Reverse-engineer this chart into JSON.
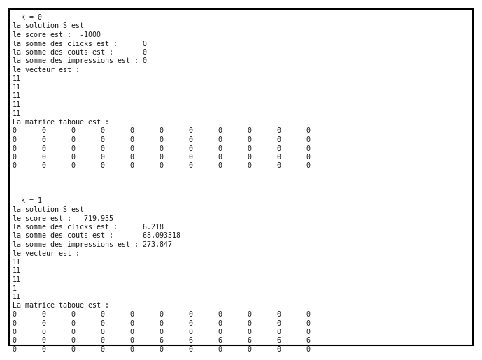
{
  "bg_color": "#ffffff",
  "border_color": "#000000",
  "text_color": "#1a1a1a",
  "font_size": 7.2,
  "lines_section1": [
    "  k = 0",
    "la solution S est",
    "le score est :  -1000",
    "la somme des clicks est :      0",
    "la somme des couts est :       0",
    "la somme des impressions est : 0",
    "le vecteur est :",
    "11",
    "11",
    "11",
    "11",
    "11",
    "La matrice taboue est :",
    "0      0      0      0      0      0      0      0      0      0      0",
    "0      0      0      0      0      0      0      0      0      0      0",
    "0      0      0      0      0      0      0      0      0      0      0",
    "0      0      0      0      0      0      0      0      0      0      0",
    "0      0      0      0      0      0      0      0      0      0      0"
  ],
  "lines_section2": [
    "  k = 1",
    "la solution S est",
    "le score est :  -719.935",
    "la somme des clicks est :      6.218",
    "la somme des couts est :       68.093318",
    "la somme des impressions est : 273.847",
    "le vecteur est :",
    "11",
    "11",
    "11",
    "1",
    "11",
    "La matrice taboue est :",
    "0      0      0      0      0      0      0      0      0      0      0",
    "0      0      0      0      0      0      0      0      0      0      0",
    "0      0      0      0      0      0      0      0      0      0      0",
    "0      0      0      0      0      6      6      6      6      6      6",
    "0      0      0      0      0      0      0      0      0      0      0"
  ]
}
